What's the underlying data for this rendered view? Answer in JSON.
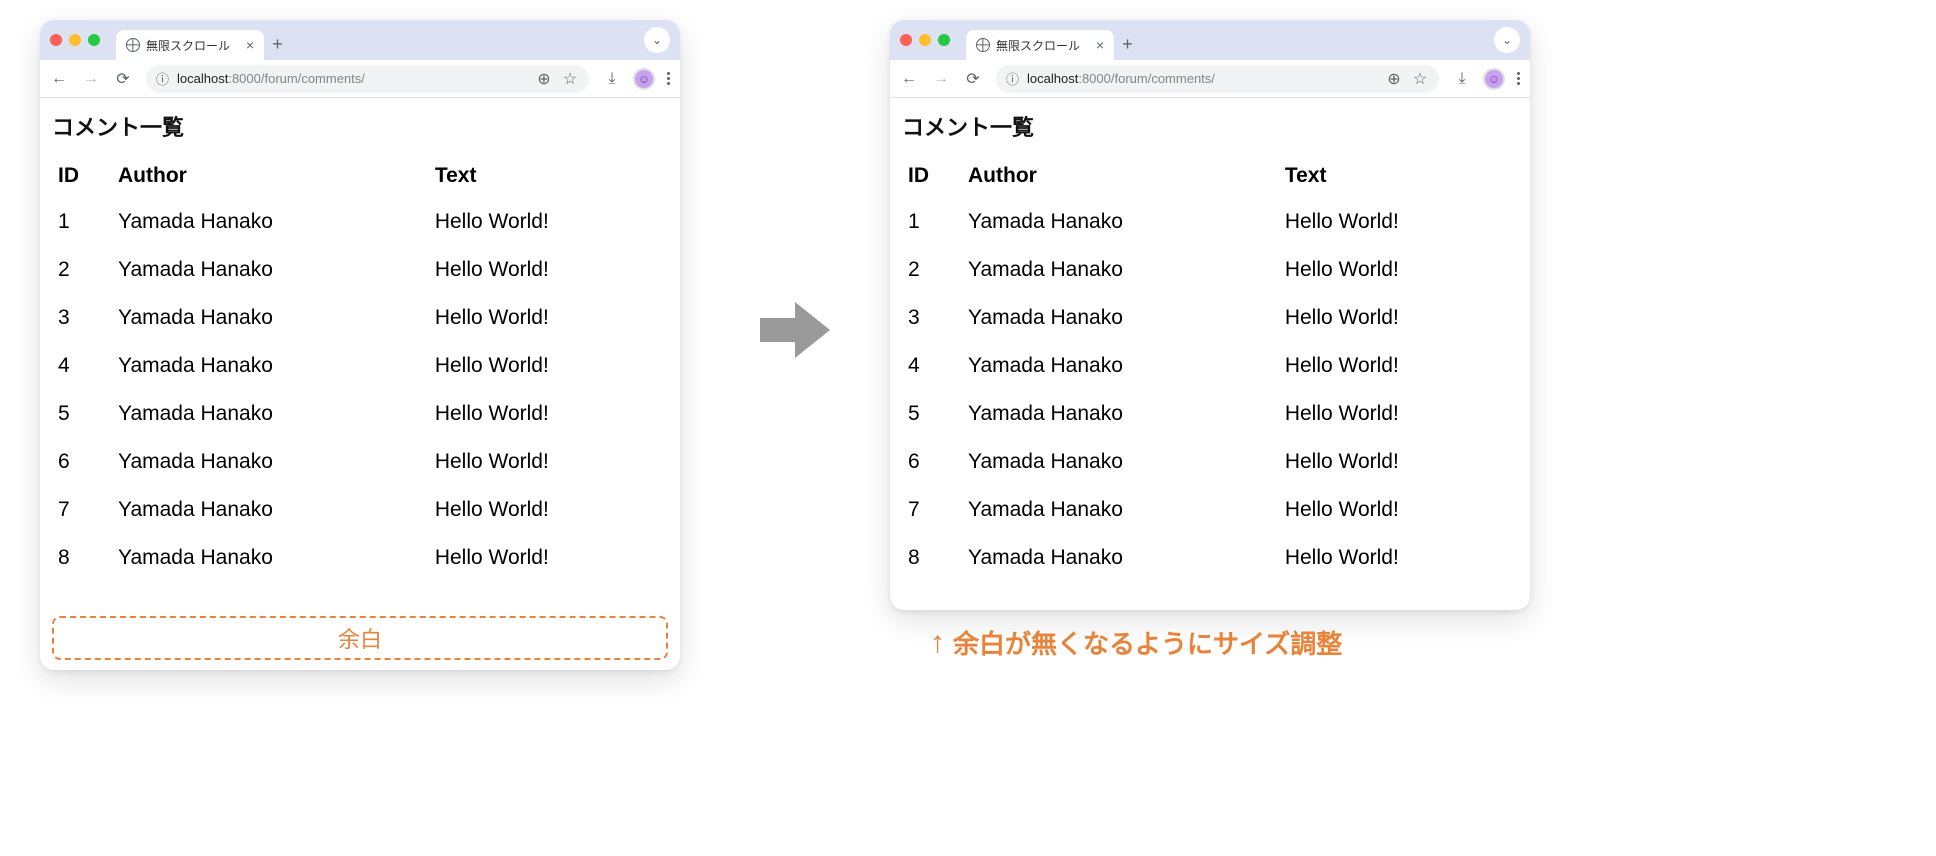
{
  "colors": {
    "tabstrip_bg": "#dce2f4",
    "accent_orange": "#e8833a",
    "arrow_gray": "#9a9a9a",
    "text": "#111111",
    "omnibox_bg": "#f1f3f4",
    "traffic": {
      "red": "#ff5f57",
      "yellow": "#febc2e",
      "green": "#28c840"
    }
  },
  "tab": {
    "title": "無限スクロール",
    "close_glyph": "×",
    "newtab_glyph": "+",
    "chevron_glyph": "⌄"
  },
  "toolbar": {
    "back_glyph": "←",
    "forward_glyph": "→",
    "reload_glyph": "⟳",
    "info_glyph": "ⓘ",
    "zoom_glyph": "⊕",
    "star_glyph": "☆",
    "download_glyph": "⤓",
    "avatar_glyph": "☺",
    "url_host": "localhost",
    "url_port": ":8000",
    "url_path": "/forum/comments/"
  },
  "page": {
    "heading": "コメント一覧",
    "table": {
      "columns": [
        "ID",
        "Author",
        "Text"
      ],
      "col_widths": [
        "60px",
        "auto",
        "auto"
      ],
      "rows": [
        [
          "1",
          "Yamada Hanako",
          "Hello World!"
        ],
        [
          "2",
          "Yamada Hanako",
          "Hello World!"
        ],
        [
          "3",
          "Yamada Hanako",
          "Hello World!"
        ],
        [
          "4",
          "Yamada Hanako",
          "Hello World!"
        ],
        [
          "5",
          "Yamada Hanako",
          "Hello World!"
        ],
        [
          "6",
          "Yamada Hanako",
          "Hello World!"
        ],
        [
          "7",
          "Yamada Hanako",
          "Hello World!"
        ],
        [
          "8",
          "Yamada Hanako",
          "Hello World!"
        ]
      ]
    }
  },
  "dashed_label": "余白",
  "annotation": {
    "arrow_glyph": "↑",
    "text": "余白が無くなるようにサイズ調整"
  }
}
